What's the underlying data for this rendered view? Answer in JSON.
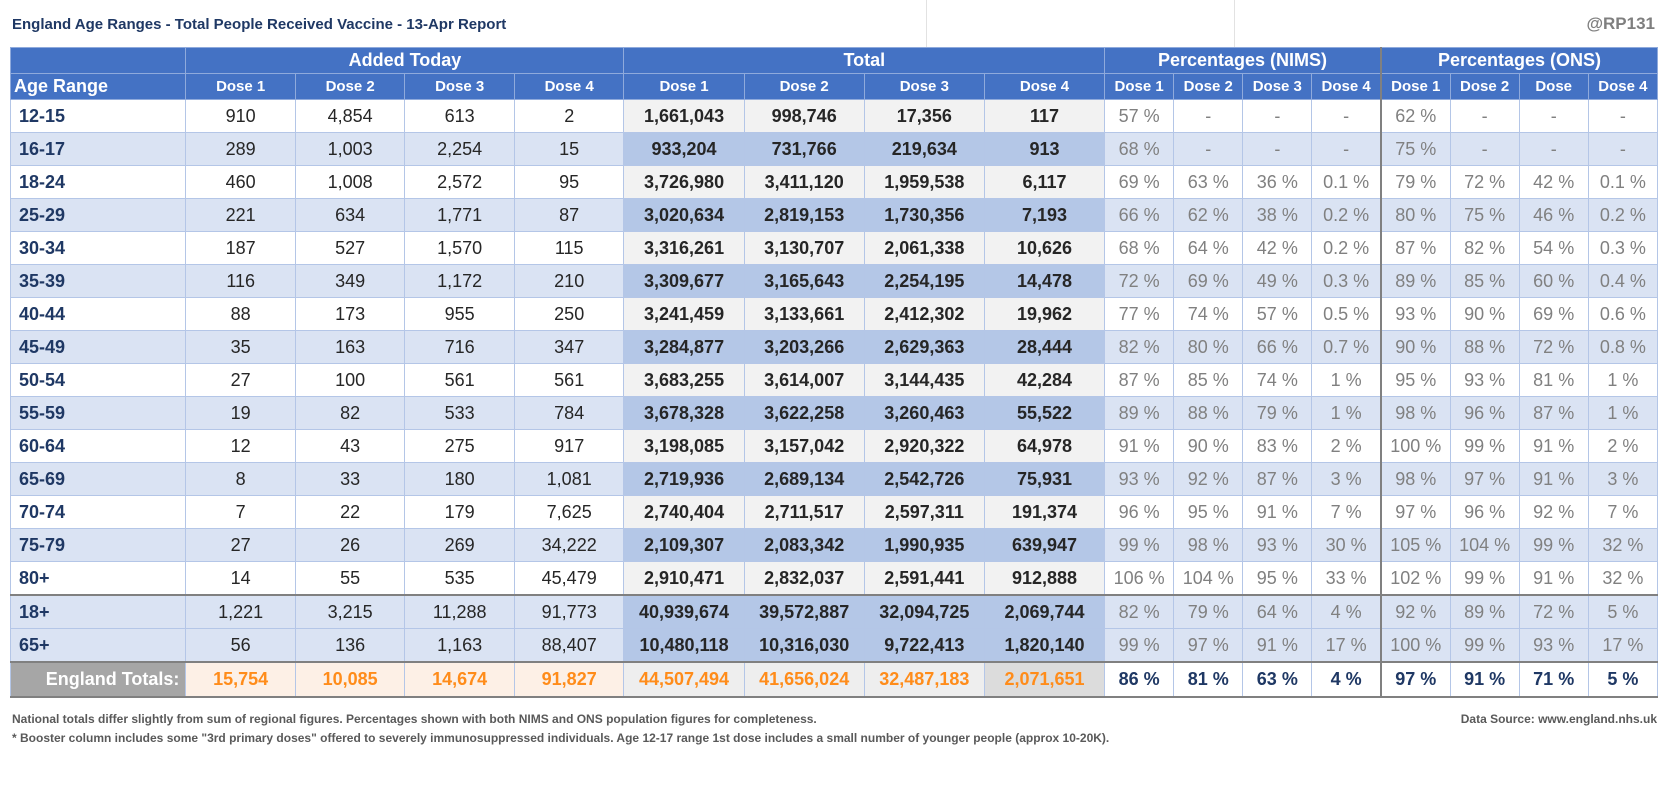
{
  "title": "England Age Ranges - Total People Received Vaccine - 13-Apr Report",
  "handle": "@RP131",
  "groups": {
    "added": "Added Today",
    "total": "Total",
    "nims": "Percentages (NIMS)",
    "ons": "Percentages (ONS)"
  },
  "columns": {
    "age": "Age Range",
    "added": [
      "Dose 1",
      "Dose 2",
      "Dose 3",
      "Dose 4"
    ],
    "total": [
      "Dose 1",
      "Dose 2",
      "Dose 3",
      "Dose 4"
    ],
    "nims": [
      "Dose 1",
      "Dose 2",
      "Dose 3",
      "Dose 4"
    ],
    "ons": [
      "Dose 1",
      "Dose 2",
      "Dose",
      "Dose 4"
    ]
  },
  "rows": [
    {
      "age": "12-15",
      "added": [
        "910",
        "4,854",
        "613",
        "2"
      ],
      "total": [
        "1,661,043",
        "998,746",
        "17,356",
        "117"
      ],
      "nims": [
        "57 %",
        "-",
        "-",
        "-"
      ],
      "ons": [
        "62 %",
        "-",
        "-",
        "-"
      ]
    },
    {
      "age": "16-17",
      "added": [
        "289",
        "1,003",
        "2,254",
        "15"
      ],
      "total": [
        "933,204",
        "731,766",
        "219,634",
        "913"
      ],
      "nims": [
        "68 %",
        "-",
        "-",
        "-"
      ],
      "ons": [
        "75 %",
        "-",
        "-",
        "-"
      ]
    },
    {
      "age": "18-24",
      "added": [
        "460",
        "1,008",
        "2,572",
        "95"
      ],
      "total": [
        "3,726,980",
        "3,411,120",
        "1,959,538",
        "6,117"
      ],
      "nims": [
        "69 %",
        "63 %",
        "36 %",
        "0.1 %"
      ],
      "ons": [
        "79 %",
        "72 %",
        "42 %",
        "0.1 %"
      ]
    },
    {
      "age": "25-29",
      "added": [
        "221",
        "634",
        "1,771",
        "87"
      ],
      "total": [
        "3,020,634",
        "2,819,153",
        "1,730,356",
        "7,193"
      ],
      "nims": [
        "66 %",
        "62 %",
        "38 %",
        "0.2 %"
      ],
      "ons": [
        "80 %",
        "75 %",
        "46 %",
        "0.2 %"
      ]
    },
    {
      "age": "30-34",
      "added": [
        "187",
        "527",
        "1,570",
        "115"
      ],
      "total": [
        "3,316,261",
        "3,130,707",
        "2,061,338",
        "10,626"
      ],
      "nims": [
        "68 %",
        "64 %",
        "42 %",
        "0.2 %"
      ],
      "ons": [
        "87 %",
        "82 %",
        "54 %",
        "0.3 %"
      ]
    },
    {
      "age": "35-39",
      "added": [
        "116",
        "349",
        "1,172",
        "210"
      ],
      "total": [
        "3,309,677",
        "3,165,643",
        "2,254,195",
        "14,478"
      ],
      "nims": [
        "72 %",
        "69 %",
        "49 %",
        "0.3 %"
      ],
      "ons": [
        "89 %",
        "85 %",
        "60 %",
        "0.4 %"
      ]
    },
    {
      "age": "40-44",
      "added": [
        "88",
        "173",
        "955",
        "250"
      ],
      "total": [
        "3,241,459",
        "3,133,661",
        "2,412,302",
        "19,962"
      ],
      "nims": [
        "77 %",
        "74 %",
        "57 %",
        "0.5 %"
      ],
      "ons": [
        "93 %",
        "90 %",
        "69 %",
        "0.6 %"
      ]
    },
    {
      "age": "45-49",
      "added": [
        "35",
        "163",
        "716",
        "347"
      ],
      "total": [
        "3,284,877",
        "3,203,266",
        "2,629,363",
        "28,444"
      ],
      "nims": [
        "82 %",
        "80 %",
        "66 %",
        "0.7 %"
      ],
      "ons": [
        "90 %",
        "88 %",
        "72 %",
        "0.8 %"
      ]
    },
    {
      "age": "50-54",
      "added": [
        "27",
        "100",
        "561",
        "561"
      ],
      "total": [
        "3,683,255",
        "3,614,007",
        "3,144,435",
        "42,284"
      ],
      "nims": [
        "87 %",
        "85 %",
        "74 %",
        "1 %"
      ],
      "ons": [
        "95 %",
        "93 %",
        "81 %",
        "1 %"
      ]
    },
    {
      "age": "55-59",
      "added": [
        "19",
        "82",
        "533",
        "784"
      ],
      "total": [
        "3,678,328",
        "3,622,258",
        "3,260,463",
        "55,522"
      ],
      "nims": [
        "89 %",
        "88 %",
        "79 %",
        "1 %"
      ],
      "ons": [
        "98 %",
        "96 %",
        "87 %",
        "1 %"
      ]
    },
    {
      "age": "60-64",
      "added": [
        "12",
        "43",
        "275",
        "917"
      ],
      "total": [
        "3,198,085",
        "3,157,042",
        "2,920,322",
        "64,978"
      ],
      "nims": [
        "91 %",
        "90 %",
        "83 %",
        "2 %"
      ],
      "ons": [
        "100 %",
        "99 %",
        "91 %",
        "2 %"
      ]
    },
    {
      "age": "65-69",
      "added": [
        "8",
        "33",
        "180",
        "1,081"
      ],
      "total": [
        "2,719,936",
        "2,689,134",
        "2,542,726",
        "75,931"
      ],
      "nims": [
        "93 %",
        "92 %",
        "87 %",
        "3 %"
      ],
      "ons": [
        "98 %",
        "97 %",
        "91 %",
        "3 %"
      ]
    },
    {
      "age": "70-74",
      "added": [
        "7",
        "22",
        "179",
        "7,625"
      ],
      "total": [
        "2,740,404",
        "2,711,517",
        "2,597,311",
        "191,374"
      ],
      "nims": [
        "96 %",
        "95 %",
        "91 %",
        "7 %"
      ],
      "ons": [
        "97 %",
        "96 %",
        "92 %",
        "7 %"
      ]
    },
    {
      "age": "75-79",
      "added": [
        "27",
        "26",
        "269",
        "34,222"
      ],
      "total": [
        "2,109,307",
        "2,083,342",
        "1,990,935",
        "639,947"
      ],
      "nims": [
        "99 %",
        "98 %",
        "93 %",
        "30 %"
      ],
      "ons": [
        "105 %",
        "104 %",
        "99 %",
        "32 %"
      ]
    },
    {
      "age": "80+",
      "added": [
        "14",
        "55",
        "535",
        "45,479"
      ],
      "total": [
        "2,910,471",
        "2,832,037",
        "2,591,441",
        "912,888"
      ],
      "nims": [
        "106 %",
        "104 %",
        "95 %",
        "33 %"
      ],
      "ons": [
        "102 %",
        "99 %",
        "91 %",
        "32 %"
      ]
    }
  ],
  "summary": [
    {
      "age": "18+",
      "added": [
        "1,221",
        "3,215",
        "11,288",
        "91,773"
      ],
      "total": [
        "40,939,674",
        "39,572,887",
        "32,094,725",
        "2,069,744"
      ],
      "nims": [
        "82 %",
        "79 %",
        "64 %",
        "4 %"
      ],
      "ons": [
        "92 %",
        "89 %",
        "72 %",
        "5 %"
      ]
    },
    {
      "age": "65+",
      "added": [
        "56",
        "136",
        "1,163",
        "88,407"
      ],
      "total": [
        "10,480,118",
        "10,316,030",
        "9,722,413",
        "1,820,140"
      ],
      "nims": [
        "99 %",
        "97 %",
        "91 %",
        "17 %"
      ],
      "ons": [
        "100 %",
        "99 %",
        "93 %",
        "17 %"
      ]
    }
  ],
  "totals": {
    "label": "England Totals:",
    "added": [
      "15,754",
      "10,085",
      "14,674",
      "91,827"
    ],
    "total": [
      "44,507,494",
      "41,656,024",
      "32,487,183",
      "2,071,651"
    ],
    "nims": [
      "86 %",
      "81 %",
      "63 %",
      "4 %"
    ],
    "ons": [
      "97 %",
      "91 %",
      "71 %",
      "5 %"
    ]
  },
  "footnotes": {
    "line1": "National totals differ slightly from sum of regional figures. Percentages shown with both NIMS and ONS population figures for completeness.",
    "line2": "* Booster column includes some \"3rd primary doses\" offered to severely immunosuppressed individuals. Age 12-17 range 1st dose includes a small number of younger people (approx 10-20K).",
    "source": "Data Source: www.england.nhs.uk"
  },
  "colors": {
    "header": "#4472c4",
    "stripe": "#dae3f3",
    "total_stripe": "#b4c7e7",
    "title": "#1f3864",
    "orange": "#ff8c1a"
  }
}
